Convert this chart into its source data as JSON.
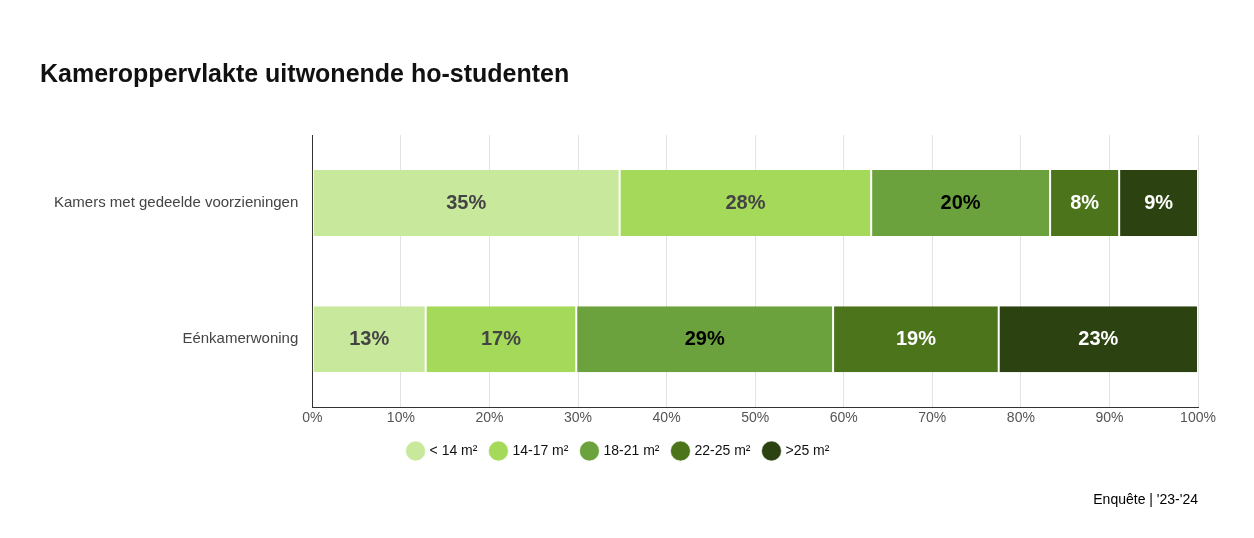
{
  "chart_data": {
    "type": "bar",
    "orientation": "horizontal",
    "stacked": true,
    "title": "Kameroppervlakte uitwonende ho-studenten",
    "categories": [
      "Kamers met gedeelde voorzieningen",
      "Eénkamerwoning"
    ],
    "series": [
      {
        "name": "< 14 m²",
        "color": "#c8e89c",
        "values": [
          34.7,
          12.8
        ],
        "value_labels": [
          "35%",
          "13%"
        ]
      },
      {
        "name": "14-17 m²",
        "color": "#a5d95a",
        "values": [
          28.4,
          17.0
        ],
        "value_labels": [
          "28%",
          "17%"
        ]
      },
      {
        "name": "18-21 m²",
        "color": "#6ca23d",
        "values": [
          20.2,
          29.0
        ],
        "value_labels": [
          "20%",
          "29%"
        ]
      },
      {
        "name": "22-25 m²",
        "color": "#4c741b",
        "values": [
          7.8,
          18.7
        ],
        "value_labels": [
          "8%",
          "19%"
        ]
      },
      {
        "name": ">25 m²",
        "color": "#2c4210",
        "values": [
          8.9,
          22.5
        ],
        "value_labels": [
          "9%",
          "23%"
        ]
      }
    ],
    "xlim": [
      0,
      100
    ],
    "xticks": [
      {
        "value": 0,
        "label": "0%"
      },
      {
        "value": 10,
        "label": "10%"
      },
      {
        "value": 20,
        "label": "20%"
      },
      {
        "value": 30,
        "label": "30%"
      },
      {
        "value": 40,
        "label": "40%"
      },
      {
        "value": 50,
        "label": "50%"
      },
      {
        "value": 60,
        "label": "60%"
      },
      {
        "value": 70,
        "label": "70%"
      },
      {
        "value": 80,
        "label": "80%"
      },
      {
        "value": 90,
        "label": "90%"
      },
      {
        "value": 100,
        "label": "100%"
      }
    ],
    "grid": "x",
    "legend": "bottom",
    "annotations": [
      "Enquête | '23-'24"
    ]
  }
}
